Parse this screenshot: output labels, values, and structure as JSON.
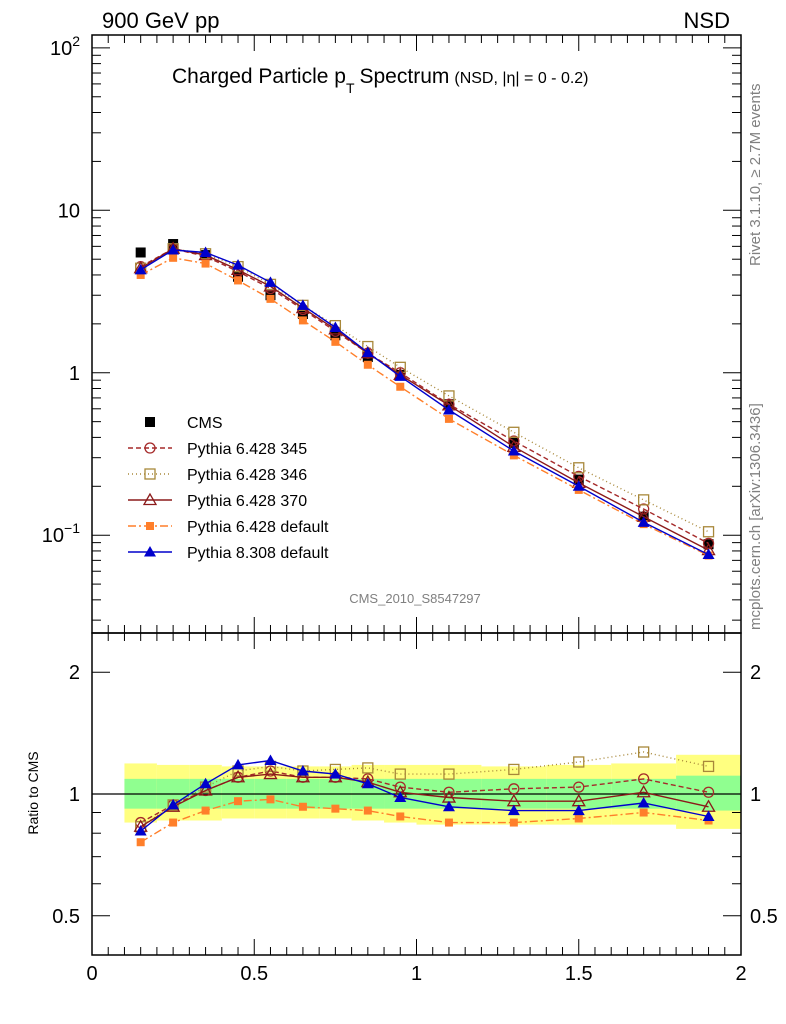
{
  "header": {
    "left": "900 GeV pp",
    "right": "NSD"
  },
  "title": {
    "main": "Charged Particle p",
    "sub": "T",
    "tail": "Spectrum",
    "extra": "(NSD, |η| =   0 - 0.2)"
  },
  "side_labels": {
    "rivet": "Rivet 3.1.10, ≥ 2.7M events",
    "mcplots": "mcplots.cern.ch [arXiv:1306.3436]"
  },
  "analysis_label": "CMS_2010_S8547297",
  "ratio_ylabel": "Ratio to CMS",
  "colors": {
    "cms": "#000000",
    "p345": "#a52a2a",
    "p346": "#a8883a",
    "p370": "#8b1a1a",
    "p6def": "#ff7f2a",
    "p8def": "#0000cc",
    "band_inner": "#90ff90",
    "band_outer": "#ffff80"
  },
  "chart_data": [
    {
      "type": "line",
      "panel": "main",
      "yscale": "log",
      "xlim": [
        0,
        2
      ],
      "ylim": [
        0.025,
        120
      ],
      "y_ticks": [
        {
          "value": 100,
          "label": "10",
          "sup": "2"
        },
        {
          "value": 10,
          "label": "10",
          "sup": ""
        },
        {
          "value": 1,
          "label": "1",
          "sup": ""
        },
        {
          "value": 0.1,
          "label": "10",
          "sup": "−1"
        }
      ],
      "x": [
        0.15,
        0.25,
        0.35,
        0.45,
        0.55,
        0.65,
        0.75,
        0.85,
        0.95,
        1.1,
        1.3,
        1.5,
        1.7,
        1.9
      ],
      "legend_placement": "middle-left",
      "series": [
        {
          "name": "CMS",
          "key": "cms",
          "marker": "square-filled",
          "dash": "none",
          "values": [
            5.5,
            6.2,
            5.3,
            3.9,
            3.0,
            2.3,
            1.7,
            1.25,
            0.97,
            0.64,
            0.37,
            0.22,
            0.13,
            0.088
          ]
        },
        {
          "name": "Pythia 6.428 345",
          "key": "p345",
          "marker": "circle-open",
          "dash": "5,3",
          "values": [
            4.5,
            5.8,
            5.2,
            4.2,
            3.3,
            2.45,
            1.8,
            1.32,
            1.0,
            0.64,
            0.38,
            0.23,
            0.145,
            0.089
          ]
        },
        {
          "name": "Pythia 6.428 346",
          "key": "p346",
          "marker": "square-open",
          "dash": "1,3",
          "values": [
            4.4,
            5.8,
            5.4,
            4.5,
            3.5,
            2.6,
            1.95,
            1.45,
            1.08,
            0.72,
            0.43,
            0.26,
            0.165,
            0.105
          ]
        },
        {
          "name": "Pythia 6.428 370",
          "key": "p370",
          "marker": "triangle-open",
          "dash": "none",
          "values": [
            4.4,
            5.8,
            5.3,
            4.3,
            3.4,
            2.5,
            1.85,
            1.32,
            0.97,
            0.63,
            0.35,
            0.21,
            0.13,
            0.081
          ]
        },
        {
          "name": "Pythia 6.428 default",
          "key": "p6def",
          "marker": "square-small-filled",
          "dash": "8,3,2,3",
          "values": [
            4.0,
            5.1,
            4.7,
            3.7,
            2.85,
            2.1,
            1.55,
            1.12,
            0.82,
            0.52,
            0.31,
            0.19,
            0.117,
            0.075
          ]
        },
        {
          "name": "Pythia 8.308 default",
          "key": "p8def",
          "marker": "triangle-filled",
          "dash": "none",
          "values": [
            4.3,
            5.7,
            5.5,
            4.6,
            3.6,
            2.6,
            1.9,
            1.33,
            0.95,
            0.59,
            0.33,
            0.2,
            0.12,
            0.076
          ]
        }
      ]
    },
    {
      "type": "line",
      "panel": "ratio",
      "yscale": "log",
      "xlim": [
        0,
        2
      ],
      "ylim": [
        0.4,
        2.5
      ],
      "ylabel": "Ratio to CMS",
      "y_ticks": [
        {
          "value": 2,
          "label": "2"
        },
        {
          "value": 1,
          "label": "1"
        },
        {
          "value": 0.5,
          "label": "0.5"
        }
      ],
      "x_ticks": [
        {
          "value": 0,
          "label": "0"
        },
        {
          "value": 0.5,
          "label": "0.5"
        },
        {
          "value": 1,
          "label": "1"
        },
        {
          "value": 1.5,
          "label": "1.5"
        },
        {
          "value": 2,
          "label": "2"
        }
      ],
      "x": [
        0.15,
        0.25,
        0.35,
        0.45,
        0.55,
        0.65,
        0.75,
        0.85,
        0.95,
        1.1,
        1.3,
        1.5,
        1.7,
        1.9
      ],
      "bands": {
        "bins": [
          [
            0.1,
            0.2
          ],
          [
            0.2,
            0.3
          ],
          [
            0.3,
            0.4
          ],
          [
            0.4,
            0.5
          ],
          [
            0.5,
            0.6
          ],
          [
            0.6,
            0.7
          ],
          [
            0.7,
            0.8
          ],
          [
            0.8,
            0.9
          ],
          [
            0.9,
            1.0
          ],
          [
            1.0,
            1.2
          ],
          [
            1.2,
            1.4
          ],
          [
            1.4,
            1.6
          ],
          [
            1.6,
            1.8
          ],
          [
            1.8,
            2.0
          ]
        ],
        "inner": [
          [
            0.92,
            1.09
          ],
          [
            0.92,
            1.09
          ],
          [
            0.92,
            1.09
          ],
          [
            0.92,
            1.09
          ],
          [
            0.92,
            1.09
          ],
          [
            0.92,
            1.09
          ],
          [
            0.92,
            1.09
          ],
          [
            0.92,
            1.09
          ],
          [
            0.92,
            1.09
          ],
          [
            0.92,
            1.09
          ],
          [
            0.92,
            1.09
          ],
          [
            0.92,
            1.09
          ],
          [
            0.92,
            1.09
          ],
          [
            0.91,
            1.11
          ]
        ],
        "outer": [
          [
            0.85,
            1.19
          ],
          [
            0.86,
            1.18
          ],
          [
            0.86,
            1.18
          ],
          [
            0.87,
            1.17
          ],
          [
            0.87,
            1.17
          ],
          [
            0.87,
            1.17
          ],
          [
            0.87,
            1.17
          ],
          [
            0.86,
            1.18
          ],
          [
            0.85,
            1.18
          ],
          [
            0.84,
            1.18
          ],
          [
            0.84,
            1.17
          ],
          [
            0.84,
            1.18
          ],
          [
            0.84,
            1.19
          ],
          [
            0.82,
            1.25
          ]
        ]
      },
      "series": [
        {
          "name": "Pythia 6.428 345",
          "key": "p345",
          "marker": "circle-open",
          "dash": "5,3",
          "values": [
            0.85,
            0.94,
            1.02,
            1.1,
            1.14,
            1.1,
            1.1,
            1.09,
            1.04,
            1.01,
            1.03,
            1.04,
            1.09,
            1.01
          ]
        },
        {
          "name": "Pythia 6.428 346",
          "key": "p346",
          "marker": "square-open",
          "dash": "1,3",
          "values": [
            0.83,
            0.94,
            1.04,
            1.14,
            1.17,
            1.14,
            1.15,
            1.16,
            1.12,
            1.12,
            1.15,
            1.2,
            1.27,
            1.17
          ]
        },
        {
          "name": "Pythia 6.428 370",
          "key": "p370",
          "marker": "triangle-open",
          "dash": "none",
          "values": [
            0.83,
            0.93,
            1.02,
            1.1,
            1.12,
            1.1,
            1.1,
            1.07,
            1.01,
            0.98,
            0.96,
            0.96,
            1.01,
            0.93
          ]
        },
        {
          "name": "Pythia 6.428 default",
          "key": "p6def",
          "marker": "square-small-filled",
          "dash": "8,3,2,3",
          "values": [
            0.76,
            0.85,
            0.91,
            0.96,
            0.97,
            0.93,
            0.92,
            0.91,
            0.88,
            0.85,
            0.85,
            0.87,
            0.9,
            0.86
          ]
        },
        {
          "name": "Pythia 8.308 default",
          "key": "p8def",
          "marker": "triangle-filled",
          "dash": "none",
          "values": [
            0.81,
            0.94,
            1.06,
            1.18,
            1.21,
            1.14,
            1.12,
            1.06,
            0.98,
            0.93,
            0.91,
            0.91,
            0.95,
            0.88
          ]
        }
      ]
    }
  ]
}
